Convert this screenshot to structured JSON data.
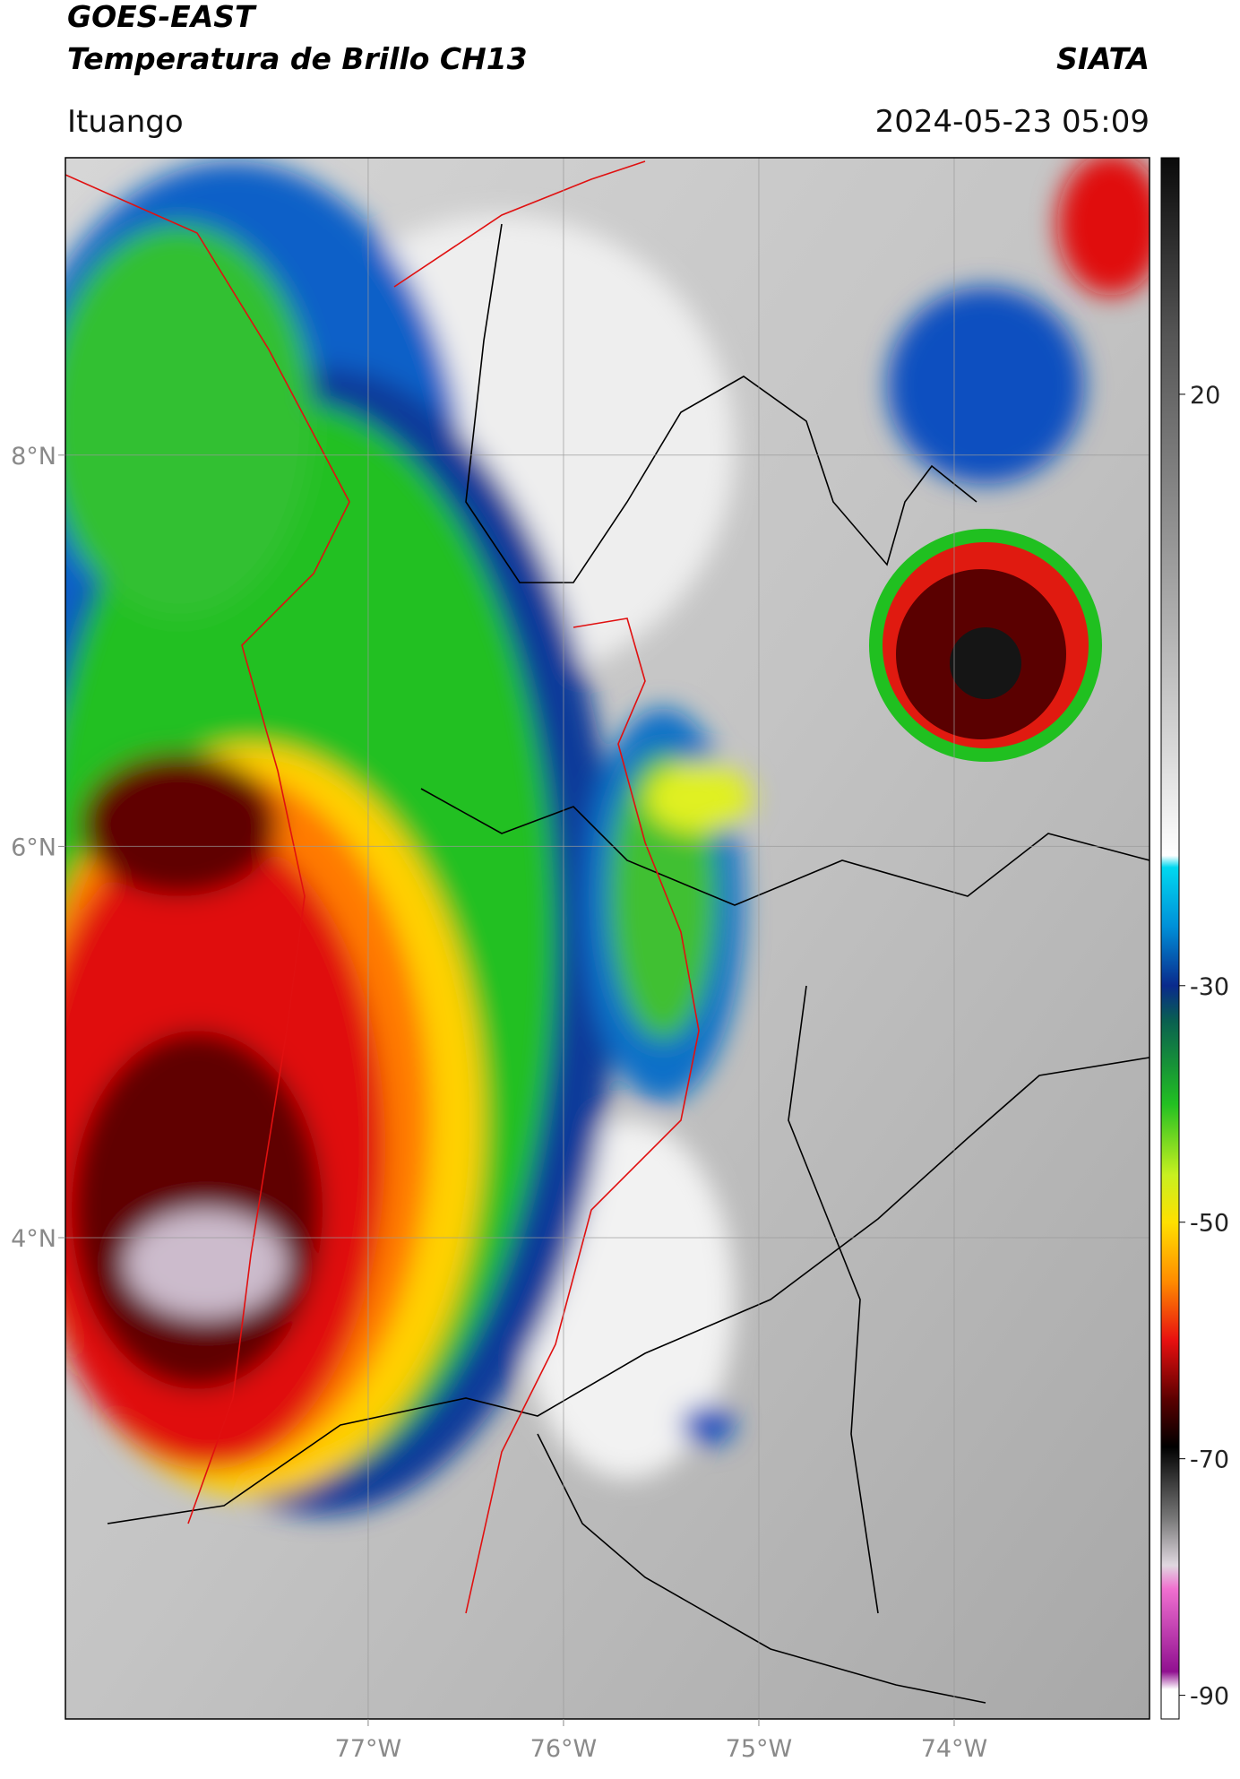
{
  "header": {
    "title_line1": "GOES-EAST",
    "title_line2": "Temperatura de Brillo CH13",
    "agency": "SIATA",
    "location": "Ituango",
    "timestamp": "2024-05-23 05:09"
  },
  "map": {
    "lon_range": [
      -78.55,
      -73.0
    ],
    "lat_range": [
      1.54,
      9.52
    ],
    "grid": true,
    "lat_ticks": [
      {
        "value": 8,
        "label": "8°N"
      },
      {
        "value": 6,
        "label": "6°N"
      },
      {
        "value": 4,
        "label": "4°N"
      }
    ],
    "lon_ticks": [
      {
        "value": -77,
        "label": "77°W"
      },
      {
        "value": -76,
        "label": "76°W"
      },
      {
        "value": -75,
        "label": "75°W"
      },
      {
        "value": -74,
        "label": "74°W"
      }
    ]
  },
  "colorbar": {
    "range": [
      -92,
      40
    ],
    "ticks": [
      20,
      -30,
      -50,
      -70,
      -90
    ],
    "stops": [
      {
        "value": 40,
        "color": "#0a0a0a"
      },
      {
        "value": 25,
        "color": "#555555"
      },
      {
        "value": 10,
        "color": "#8c8c8c"
      },
      {
        "value": -10,
        "color": "#d8d8d8"
      },
      {
        "value": -19,
        "color": "#ffffff"
      },
      {
        "value": -20,
        "color": "#00d8f0"
      },
      {
        "value": -25,
        "color": "#0090d8"
      },
      {
        "value": -30,
        "color": "#0a2a8c"
      },
      {
        "value": -33,
        "color": "#0a6050"
      },
      {
        "value": -40,
        "color": "#22c022"
      },
      {
        "value": -46,
        "color": "#c8f020"
      },
      {
        "value": -50,
        "color": "#ffe000"
      },
      {
        "value": -55,
        "color": "#ff8c00"
      },
      {
        "value": -60,
        "color": "#e81010"
      },
      {
        "value": -65,
        "color": "#5a0000"
      },
      {
        "value": -69,
        "color": "#000000"
      },
      {
        "value": -75,
        "color": "#777777"
      },
      {
        "value": -79,
        "color": "#e0d8e0"
      },
      {
        "value": -81,
        "color": "#f070d0"
      },
      {
        "value": -88,
        "color": "#901090"
      },
      {
        "value": -89.5,
        "color": "#ffffff"
      },
      {
        "value": -92,
        "color": "#ffffff"
      }
    ]
  }
}
